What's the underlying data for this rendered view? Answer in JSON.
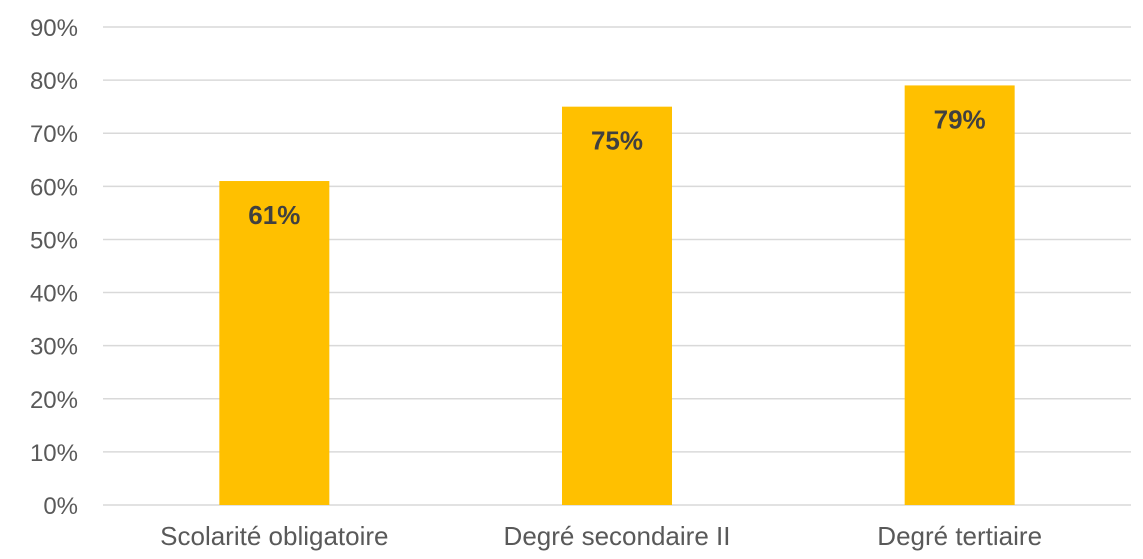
{
  "chart_data": {
    "type": "bar",
    "categories": [
      "Scolarité obligatoire",
      "Degré secondaire II",
      "Degré tertiaire"
    ],
    "values": [
      61,
      75,
      79
    ],
    "data_labels": [
      "61%",
      "75%",
      "79%"
    ],
    "title": "",
    "xlabel": "",
    "ylabel": "",
    "ylim": [
      0,
      90
    ],
    "yticks": [
      0,
      10,
      20,
      30,
      40,
      50,
      60,
      70,
      80,
      90
    ],
    "ytick_labels": [
      "0%",
      "10%",
      "20%",
      "30%",
      "40%",
      "50%",
      "60%",
      "70%",
      "80%",
      "90%"
    ],
    "grid": true,
    "legend": "none",
    "bar_color": "#ffc000",
    "gridline_color": "#d9d9d9",
    "label_color": "#595959",
    "data_label_color": "#404040"
  }
}
